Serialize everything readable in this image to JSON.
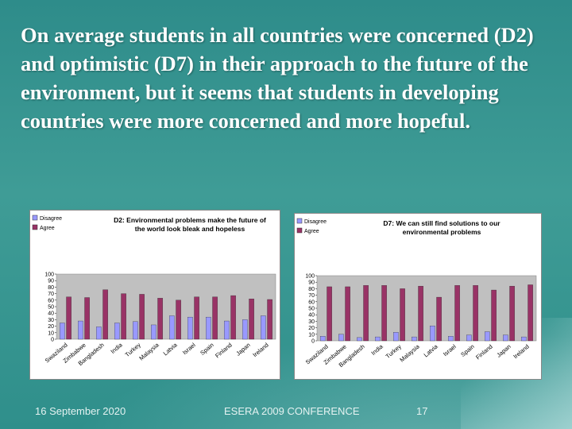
{
  "slide": {
    "title": "On average students in all countries were concerned (D2) and optimistic (D7) in their approach to the future of the environment, but it seems that students in developing countries were more concerned and more hopeful."
  },
  "footer": {
    "date": "16 September 2020",
    "conference": "ESERA 2009 CONFERENCE",
    "page": "17"
  },
  "colors": {
    "disagree": "#9999ff",
    "agree": "#993366",
    "bg": "#2e8c8a"
  },
  "chart_data": [
    {
      "type": "bar",
      "title_lines": [
        "D2: Environmental problems make the future of",
        "the world look bleak and hopeless"
      ],
      "legend": [
        "Disagree",
        "Agree"
      ],
      "categories": [
        "Swaziland",
        "Zimbabwe",
        "Bangladesh",
        "India",
        "Turkey",
        "Malaysia",
        "Latvia",
        "Israel",
        "Spain",
        "Finland",
        "Japan",
        "Ireland"
      ],
      "series": [
        {
          "name": "Disagree",
          "values": [
            25,
            28,
            19,
            25,
            27,
            22,
            36,
            34,
            34,
            28,
            30,
            36
          ]
        },
        {
          "name": "Agree",
          "values": [
            65,
            64,
            76,
            70,
            69,
            63,
            60,
            65,
            65,
            67,
            62,
            61
          ]
        }
      ],
      "yticks": [
        0,
        10,
        20,
        30,
        40,
        50,
        60,
        70,
        80,
        90,
        100
      ],
      "ylim": [
        0,
        100
      ]
    },
    {
      "type": "bar",
      "title_lines": [
        "D7: We can still find solutions to our",
        "environmental problems"
      ],
      "legend": [
        "Disagree",
        "Agree"
      ],
      "categories": [
        "Swaziland",
        "Zimbabwe",
        "Bangladesh",
        "India",
        "Turkey",
        "Malaysia",
        "Latvia",
        "Israel",
        "Spain",
        "Finland",
        "Japan",
        "Ireland"
      ],
      "series": [
        {
          "name": "Disagree",
          "values": [
            7,
            10,
            5,
            6,
            13,
            6,
            23,
            7,
            9,
            14,
            9,
            6
          ]
        },
        {
          "name": "Agree",
          "values": [
            83,
            83,
            85,
            85,
            80,
            84,
            67,
            85,
            85,
            78,
            84,
            86
          ]
        }
      ],
      "yticks": [
        0,
        10,
        20,
        30,
        40,
        50,
        60,
        70,
        80,
        90,
        100
      ],
      "ylim": [
        0,
        100
      ]
    }
  ]
}
